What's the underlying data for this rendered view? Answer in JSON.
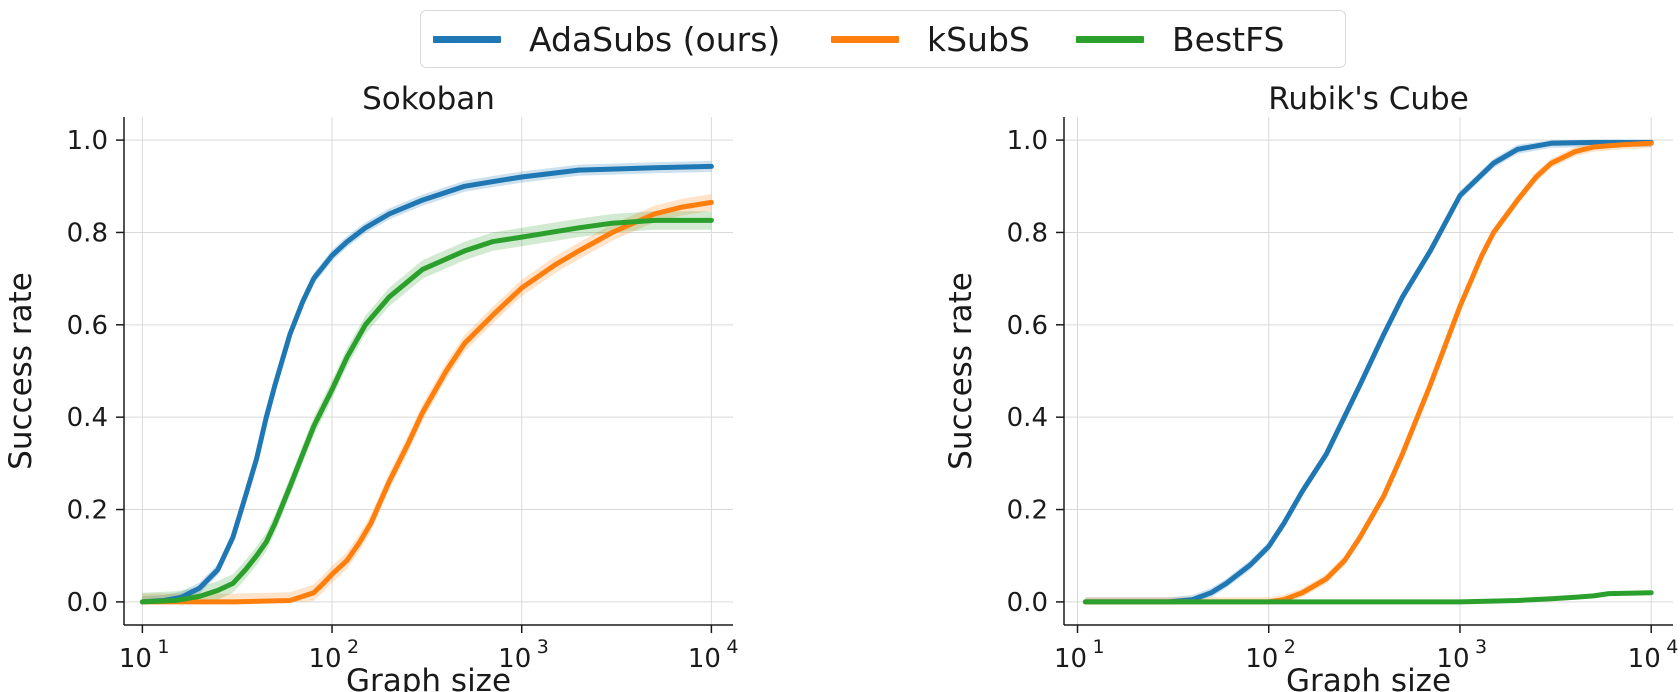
{
  "legend": {
    "placement": "top-center",
    "items": [
      {
        "label": "AdaSubs (ours)",
        "color": "#1f77b4"
      },
      {
        "label": "kSubS",
        "color": "#ff7f0e"
      },
      {
        "label": "BestFS",
        "color": "#2ca02c"
      }
    ]
  },
  "chart_data": [
    {
      "type": "line",
      "title": "Sokoban",
      "xlabel": "Graph size",
      "ylabel": "Success rate",
      "xscale": "log",
      "xlim": [
        8,
        13000
      ],
      "ylim": [
        -0.05,
        1.05
      ],
      "xticks": [
        10,
        100,
        1000,
        10000
      ],
      "xtick_labels": [
        "10",
        "10",
        "10",
        "10"
      ],
      "xtick_exponents": [
        "1",
        "2",
        "3",
        "4"
      ],
      "yticks": [
        0.0,
        0.2,
        0.4,
        0.6,
        0.8,
        1.0
      ],
      "ytick_labels": [
        "0.0",
        "0.2",
        "0.4",
        "0.6",
        "0.8",
        "1.0"
      ],
      "grid": true,
      "series": [
        {
          "name": "AdaSubs (ours)",
          "color": "#1f77b4",
          "band": 0.012,
          "points": [
            [
              10,
              0
            ],
            [
              13,
              0.003
            ],
            [
              16,
              0.01
            ],
            [
              20,
              0.03
            ],
            [
              25,
              0.07
            ],
            [
              30,
              0.14
            ],
            [
              35,
              0.23
            ],
            [
              40,
              0.31
            ],
            [
              45,
              0.4
            ],
            [
              50,
              0.47
            ],
            [
              60,
              0.58
            ],
            [
              70,
              0.65
            ],
            [
              80,
              0.7
            ],
            [
              100,
              0.75
            ],
            [
              120,
              0.78
            ],
            [
              150,
              0.81
            ],
            [
              200,
              0.84
            ],
            [
              300,
              0.87
            ],
            [
              500,
              0.9
            ],
            [
              700,
              0.91
            ],
            [
              1000,
              0.92
            ],
            [
              2000,
              0.935
            ],
            [
              5000,
              0.94
            ],
            [
              10000,
              0.943
            ]
          ]
        },
        {
          "name": "kSubS",
          "color": "#ff7f0e",
          "band": 0.018,
          "points": [
            [
              10,
              0
            ],
            [
              30,
              0
            ],
            [
              60,
              0.003
            ],
            [
              70,
              0.012
            ],
            [
              80,
              0.02
            ],
            [
              90,
              0.04
            ],
            [
              100,
              0.06
            ],
            [
              120,
              0.09
            ],
            [
              140,
              0.13
            ],
            [
              160,
              0.17
            ],
            [
              200,
              0.26
            ],
            [
              250,
              0.34
            ],
            [
              300,
              0.41
            ],
            [
              400,
              0.5
            ],
            [
              500,
              0.56
            ],
            [
              700,
              0.62
            ],
            [
              1000,
              0.68
            ],
            [
              1500,
              0.73
            ],
            [
              2000,
              0.76
            ],
            [
              3000,
              0.8
            ],
            [
              5000,
              0.84
            ],
            [
              7000,
              0.855
            ],
            [
              10000,
              0.865
            ]
          ]
        },
        {
          "name": "BestFS",
          "color": "#2ca02c",
          "band": 0.02,
          "points": [
            [
              10,
              0
            ],
            [
              15,
              0.003
            ],
            [
              20,
              0.012
            ],
            [
              25,
              0.025
            ],
            [
              30,
              0.04
            ],
            [
              35,
              0.07
            ],
            [
              40,
              0.1
            ],
            [
              45,
              0.13
            ],
            [
              50,
              0.17
            ],
            [
              60,
              0.25
            ],
            [
              70,
              0.32
            ],
            [
              80,
              0.38
            ],
            [
              100,
              0.46
            ],
            [
              120,
              0.53
            ],
            [
              150,
              0.6
            ],
            [
              200,
              0.66
            ],
            [
              300,
              0.72
            ],
            [
              500,
              0.76
            ],
            [
              700,
              0.78
            ],
            [
              1000,
              0.79
            ],
            [
              2000,
              0.81
            ],
            [
              3000,
              0.82
            ],
            [
              5000,
              0.826
            ],
            [
              10000,
              0.826
            ]
          ]
        }
      ]
    },
    {
      "type": "line",
      "title": "Rubik's Cube",
      "xlabel": "Graph size",
      "ylabel": "Success rate",
      "xscale": "log",
      "xlim": [
        8.5,
        13000
      ],
      "ylim": [
        -0.05,
        1.05
      ],
      "xticks": [
        10,
        100,
        1000,
        10000
      ],
      "xtick_labels": [
        "10",
        "10",
        "10",
        "10"
      ],
      "xtick_exponents": [
        "1",
        "2",
        "3",
        "4"
      ],
      "yticks": [
        0.0,
        0.2,
        0.4,
        0.6,
        0.8,
        1.0
      ],
      "ytick_labels": [
        "0.0",
        "0.2",
        "0.4",
        "0.6",
        "0.8",
        "1.0"
      ],
      "grid": true,
      "series": [
        {
          "name": "AdaSubs (ours)",
          "color": "#1f77b4",
          "band": 0.01,
          "points": [
            [
              11,
              0
            ],
            [
              30,
              0
            ],
            [
              40,
              0.005
            ],
            [
              50,
              0.02
            ],
            [
              60,
              0.04
            ],
            [
              80,
              0.08
            ],
            [
              100,
              0.12
            ],
            [
              120,
              0.17
            ],
            [
              150,
              0.24
            ],
            [
              200,
              0.32
            ],
            [
              300,
              0.47
            ],
            [
              400,
              0.58
            ],
            [
              500,
              0.66
            ],
            [
              700,
              0.76
            ],
            [
              1000,
              0.88
            ],
            [
              1500,
              0.95
            ],
            [
              2000,
              0.98
            ],
            [
              3000,
              0.993
            ],
            [
              5000,
              0.995
            ],
            [
              10000,
              0.995
            ]
          ]
        },
        {
          "name": "kSubS",
          "color": "#ff7f0e",
          "band": 0.01,
          "points": [
            [
              11,
              0
            ],
            [
              100,
              0
            ],
            [
              120,
              0.005
            ],
            [
              150,
              0.02
            ],
            [
              200,
              0.05
            ],
            [
              250,
              0.09
            ],
            [
              300,
              0.14
            ],
            [
              400,
              0.23
            ],
            [
              500,
              0.32
            ],
            [
              700,
              0.47
            ],
            [
              1000,
              0.64
            ],
            [
              1300,
              0.75
            ],
            [
              1500,
              0.8
            ],
            [
              2000,
              0.87
            ],
            [
              2500,
              0.92
            ],
            [
              3000,
              0.95
            ],
            [
              4000,
              0.975
            ],
            [
              5000,
              0.985
            ],
            [
              7000,
              0.99
            ],
            [
              10000,
              0.993
            ]
          ]
        },
        {
          "name": "BestFS",
          "color": "#2ca02c",
          "band": 0.003,
          "points": [
            [
              11,
              0
            ],
            [
              1000,
              0
            ],
            [
              2000,
              0.003
            ],
            [
              3000,
              0.007
            ],
            [
              4000,
              0.01
            ],
            [
              5000,
              0.013
            ],
            [
              6000,
              0.018
            ],
            [
              10000,
              0.02
            ]
          ]
        }
      ]
    }
  ]
}
